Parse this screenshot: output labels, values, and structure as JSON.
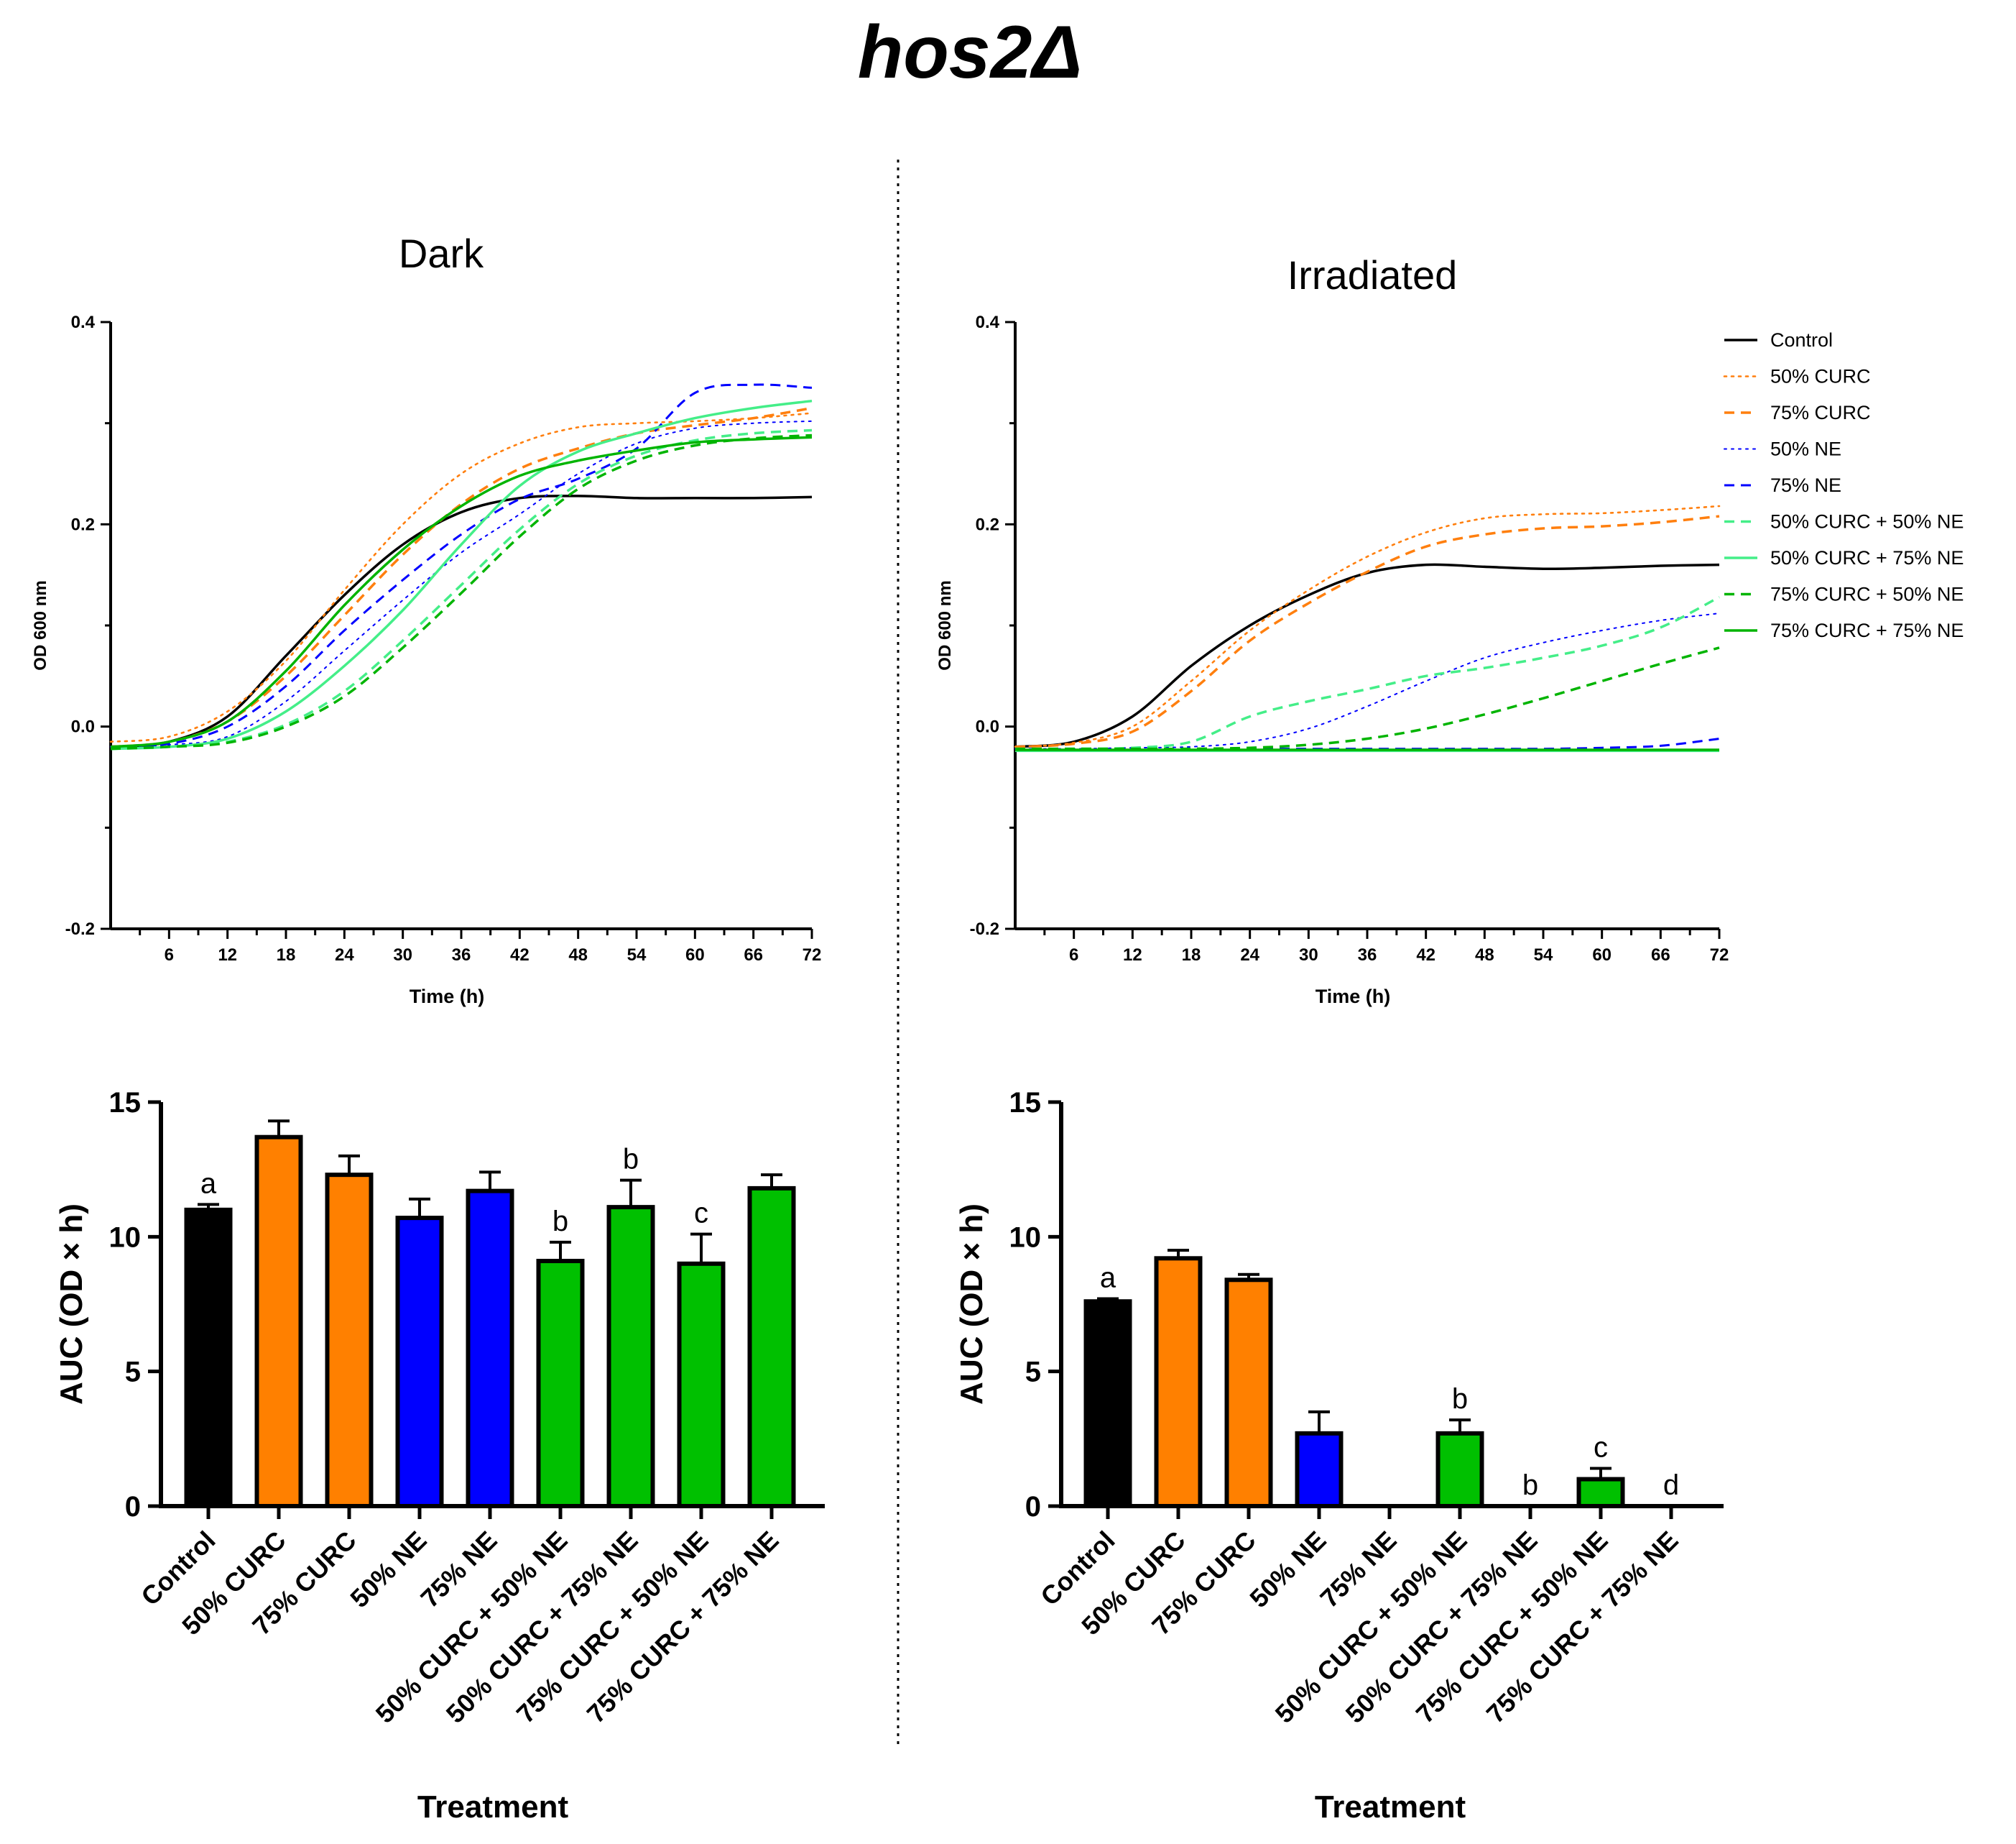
{
  "figure": {
    "title": "hos2Δ",
    "colors": {
      "control": "#000000",
      "curc": "#ff7f0e",
      "ne": "#0000ff",
      "light_green": "#44ee88",
      "green": "#00b400",
      "bar_green": "#00c000"
    }
  },
  "legend": {
    "entries": [
      {
        "label": "Control",
        "color": "#000000",
        "dash": "solid",
        "width": 3.5
      },
      {
        "label": "50% CURC",
        "color": "#ff7f0e",
        "dash": "dot",
        "width": 2.6
      },
      {
        "label": "75% CURC",
        "color": "#ff7f0e",
        "dash": "dash",
        "width": 3.5
      },
      {
        "label": "50% NE",
        "color": "#0000ff",
        "dash": "dot",
        "width": 2.0
      },
      {
        "label": "75% NE",
        "color": "#0000ff",
        "dash": "dash",
        "width": 3.0
      },
      {
        "label": "50% CURC + 50% NE",
        "color": "#44ee88",
        "dash": "dash",
        "width": 3.5
      },
      {
        "label": "50% CURC + 75% NE",
        "color": "#44ee88",
        "dash": "solid",
        "width": 3.5
      },
      {
        "label": "75% CURC + 50% NE",
        "color": "#00b400",
        "dash": "dash",
        "width": 3.5
      },
      {
        "label": "75% CURC + 75% NE",
        "color": "#00b400",
        "dash": "solid",
        "width": 3.5
      }
    ]
  },
  "chart_data": [
    {
      "id": "dark-growth",
      "type": "line",
      "title": "Dark",
      "xlabel": "Time (h)",
      "ylabel": "OD 600 nm",
      "xlim": [
        0,
        72
      ],
      "ylim": [
        -0.2,
        0.4
      ],
      "xticks": [
        "6",
        "12",
        "18",
        "24",
        "30",
        "36",
        "42",
        "48",
        "54",
        "60",
        "66",
        "72"
      ],
      "yticks": [
        "-0.2",
        "0.0",
        "0.2",
        "0.4"
      ],
      "x": [
        0,
        6,
        12,
        18,
        24,
        30,
        36,
        42,
        48,
        54,
        60,
        66,
        72
      ],
      "series": [
        {
          "name": "Control",
          "values": [
            -0.02,
            -0.015,
            0.01,
            0.07,
            0.13,
            0.18,
            0.212,
            0.226,
            0.228,
            0.226,
            0.226,
            0.226,
            0.227
          ]
        },
        {
          "name": "50% CURC",
          "values": [
            -0.015,
            -0.01,
            0.015,
            0.065,
            0.135,
            0.2,
            0.25,
            0.28,
            0.296,
            0.3,
            0.302,
            0.305,
            0.31
          ]
        },
        {
          "name": "75% CURC",
          "values": [
            -0.02,
            -0.015,
            0.005,
            0.05,
            0.11,
            0.17,
            0.22,
            0.255,
            0.275,
            0.29,
            0.298,
            0.305,
            0.315
          ]
        },
        {
          "name": "50% NE",
          "values": [
            -0.02,
            -0.018,
            -0.01,
            0.025,
            0.075,
            0.125,
            0.172,
            0.21,
            0.25,
            0.28,
            0.295,
            0.3,
            0.302
          ]
        },
        {
          "name": "75% NE",
          "values": [
            -0.02,
            -0.017,
            0.0,
            0.04,
            0.095,
            0.145,
            0.19,
            0.225,
            0.245,
            0.275,
            0.33,
            0.338,
            0.335
          ]
        },
        {
          "name": "50% CURC + 50% NE",
          "values": [
            -0.022,
            -0.02,
            -0.015,
            0.002,
            0.035,
            0.085,
            0.14,
            0.195,
            0.24,
            0.268,
            0.283,
            0.29,
            0.293
          ]
        },
        {
          "name": "50% CURC + 75% NE",
          "values": [
            -0.022,
            -0.02,
            -0.012,
            0.015,
            0.06,
            0.115,
            0.18,
            0.238,
            0.272,
            0.29,
            0.305,
            0.315,
            0.322
          ]
        },
        {
          "name": "75% CURC + 50% NE",
          "values": [
            -0.022,
            -0.02,
            -0.016,
            0.0,
            0.03,
            0.078,
            0.132,
            0.188,
            0.235,
            0.263,
            0.278,
            0.285,
            0.288
          ]
        },
        {
          "name": "75% CURC + 75% NE",
          "values": [
            -0.02,
            -0.015,
            0.005,
            0.055,
            0.12,
            0.175,
            0.218,
            0.248,
            0.263,
            0.273,
            0.281,
            0.284,
            0.286
          ]
        }
      ]
    },
    {
      "id": "irradiated-growth",
      "type": "line",
      "title": "Irradiated",
      "xlabel": "Time (h)",
      "ylabel": "OD 600 nm",
      "xlim": [
        0,
        72
      ],
      "ylim": [
        -0.2,
        0.4
      ],
      "xticks": [
        "6",
        "12",
        "18",
        "24",
        "30",
        "36",
        "42",
        "48",
        "54",
        "60",
        "66",
        "72"
      ],
      "yticks": [
        "-0.2",
        "0.0",
        "0.2",
        "0.4"
      ],
      "x": [
        0,
        6,
        12,
        18,
        24,
        30,
        36,
        42,
        48,
        54,
        60,
        66,
        72
      ],
      "series": [
        {
          "name": "Control",
          "values": [
            -0.02,
            -0.015,
            0.01,
            0.06,
            0.1,
            0.13,
            0.152,
            0.16,
            0.158,
            0.156,
            0.157,
            0.159,
            0.16
          ]
        },
        {
          "name": "50% CURC",
          "values": [
            -0.02,
            -0.016,
            0.0,
            0.045,
            0.095,
            0.135,
            0.168,
            0.192,
            0.206,
            0.21,
            0.211,
            0.214,
            0.218
          ]
        },
        {
          "name": "75% CURC",
          "values": [
            -0.02,
            -0.017,
            -0.005,
            0.035,
            0.085,
            0.122,
            0.153,
            0.178,
            0.19,
            0.196,
            0.198,
            0.202,
            0.208
          ]
        },
        {
          "name": "50% NE",
          "values": [
            -0.022,
            -0.022,
            -0.021,
            -0.02,
            -0.015,
            -0.002,
            0.02,
            0.045,
            0.068,
            0.083,
            0.095,
            0.105,
            0.112
          ]
        },
        {
          "name": "75% NE",
          "values": [
            -0.022,
            -0.022,
            -0.022,
            -0.022,
            -0.022,
            -0.022,
            -0.022,
            -0.022,
            -0.022,
            -0.022,
            -0.021,
            -0.019,
            -0.012
          ]
        },
        {
          "name": "50% CURC + 50% NE",
          "values": [
            -0.022,
            -0.022,
            -0.021,
            -0.015,
            0.01,
            0.025,
            0.037,
            0.05,
            0.058,
            0.068,
            0.08,
            0.098,
            0.128
          ]
        },
        {
          "name": "50% CURC + 75% NE",
          "values": [
            -0.024,
            -0.024,
            -0.024,
            -0.024,
            -0.024,
            -0.024,
            -0.024,
            -0.024,
            -0.024,
            -0.024,
            -0.024,
            -0.024,
            -0.024
          ]
        },
        {
          "name": "75% CURC + 50% NE",
          "values": [
            -0.022,
            -0.022,
            -0.022,
            -0.022,
            -0.021,
            -0.018,
            -0.012,
            -0.002,
            0.012,
            0.028,
            0.045,
            0.062,
            0.078
          ]
        },
        {
          "name": "75% CURC + 75% NE",
          "values": [
            -0.023,
            -0.023,
            -0.023,
            -0.023,
            -0.023,
            -0.023,
            -0.023,
            -0.023,
            -0.023,
            -0.023,
            -0.023,
            -0.023,
            -0.023
          ]
        }
      ]
    },
    {
      "id": "dark-auc",
      "type": "bar",
      "xlabel": "Treatment",
      "ylabel": "AUC (OD × h)",
      "ylim": [
        0,
        15
      ],
      "yticks": [
        "0",
        "5",
        "10",
        "15"
      ],
      "categories": [
        "Control",
        "50% CURC",
        "75% CURC",
        "50% NE",
        "75% NE",
        "50% CURC + 50% NE",
        "50% CURC + 75% NE",
        "75% CURC + 50% NE",
        "75% CURC + 75% NE"
      ],
      "values": [
        11.0,
        13.7,
        12.3,
        10.7,
        11.7,
        9.1,
        11.1,
        9.0,
        11.8
      ],
      "errors": [
        0.2,
        0.6,
        0.7,
        0.7,
        0.7,
        0.7,
        1.0,
        1.1,
        0.5
      ],
      "colors": [
        "#000000",
        "#ff8000",
        "#ff8000",
        "#0000ff",
        "#0000ff",
        "#00c000",
        "#00c000",
        "#00c000",
        "#00c000"
      ],
      "letters": [
        "a",
        "",
        "",
        "",
        "",
        "b",
        "b",
        "c",
        ""
      ]
    },
    {
      "id": "irradiated-auc",
      "type": "bar",
      "xlabel": "Treatment",
      "ylabel": "AUC (OD × h)",
      "ylim": [
        0,
        15
      ],
      "yticks": [
        "0",
        "5",
        "10",
        "15"
      ],
      "categories": [
        "Control",
        "50% CURC",
        "75% CURC",
        "50% NE",
        "75% NE",
        "50% CURC + 50% NE",
        "50% CURC + 75% NE",
        "75% CURC + 50% NE",
        "75% CURC + 75% NE"
      ],
      "values": [
        7.6,
        9.2,
        8.4,
        2.7,
        0,
        2.7,
        0,
        1.0,
        0
      ],
      "errors": [
        0.1,
        0.3,
        0.2,
        0.8,
        0,
        0.5,
        0,
        0.4,
        0
      ],
      "colors": [
        "#000000",
        "#ff8000",
        "#ff8000",
        "#0000ff",
        "#0000ff",
        "#00c000",
        "#00c000",
        "#00c000",
        "#00c000"
      ],
      "letters": [
        "a",
        "",
        "",
        "",
        "",
        "b",
        "b",
        "c",
        "d"
      ]
    }
  ]
}
